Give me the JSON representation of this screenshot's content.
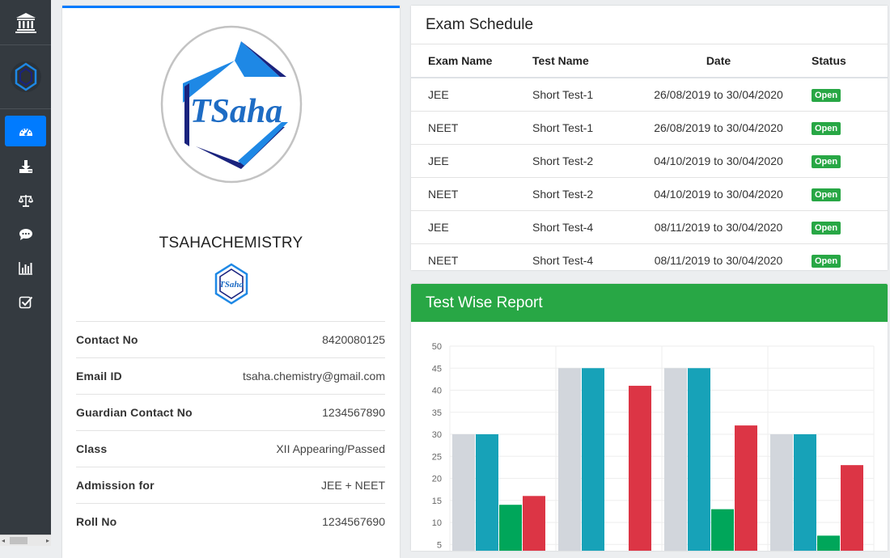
{
  "sidebar": {
    "items": [
      {
        "icon": "dashboard-icon",
        "active": true
      },
      {
        "icon": "download-icon"
      },
      {
        "icon": "balance-scale-icon"
      },
      {
        "icon": "comment-icon"
      },
      {
        "icon": "bar-chart-icon"
      },
      {
        "icon": "check-square-icon"
      }
    ]
  },
  "profile": {
    "logo_text": "TSaha",
    "name": "TSAHACHEMISTRY",
    "mini_logo_text": "TSaha",
    "rows": [
      {
        "label": "Contact No",
        "value": "8420080125"
      },
      {
        "label": "Email ID",
        "value": "tsaha.chemistry@gmail.com"
      },
      {
        "label": "Guardian Contact No",
        "value": "1234567890"
      },
      {
        "label": "Class",
        "value": "XII Appearing/Passed"
      },
      {
        "label": "Admission for",
        "value": "JEE + NEET"
      },
      {
        "label": "Roll No",
        "value": "1234567690"
      }
    ]
  },
  "exam_schedule": {
    "title": "Exam Schedule",
    "columns": [
      "Exam Name",
      "Test Name",
      "Date",
      "Status"
    ],
    "rows": [
      {
        "exam": "JEE",
        "test": "Short Test-1",
        "date": "26/08/2019 to 30/04/2020",
        "status": "Open"
      },
      {
        "exam": "NEET",
        "test": "Short Test-1",
        "date": "26/08/2019 to 30/04/2020",
        "status": "Open"
      },
      {
        "exam": "JEE",
        "test": "Short Test-2",
        "date": "04/10/2019 to 30/04/2020",
        "status": "Open"
      },
      {
        "exam": "NEET",
        "test": "Short Test-2",
        "date": "04/10/2019 to 30/04/2020",
        "status": "Open"
      },
      {
        "exam": "JEE",
        "test": "Short Test-4",
        "date": "08/11/2019 to 30/04/2020",
        "status": "Open"
      },
      {
        "exam": "NEET",
        "test": "Short Test-4",
        "date": "08/11/2019 to 30/04/2020",
        "status": "Open"
      }
    ]
  },
  "report": {
    "title": "Test Wise Report"
  },
  "chart_data": {
    "type": "bar",
    "categories": [
      "",
      "",
      "",
      ""
    ],
    "series": [
      {
        "color": "#d2d6dc",
        "values": [
          30,
          45,
          45,
          30
        ]
      },
      {
        "color": "#17a2b8",
        "values": [
          30,
          45,
          45,
          30
        ]
      },
      {
        "color": "#00a65a",
        "values": [
          14,
          0,
          13,
          7
        ]
      },
      {
        "color": "#dc3545",
        "values": [
          16,
          41,
          32,
          23
        ]
      }
    ],
    "yticks": [
      50,
      45,
      40,
      35,
      30,
      25,
      20,
      15,
      10,
      5
    ],
    "ylim": [
      0,
      50
    ],
    "grid": true
  },
  "colors": {
    "sidebar": "#343a40",
    "primary": "#007bff",
    "success": "#28a745"
  }
}
